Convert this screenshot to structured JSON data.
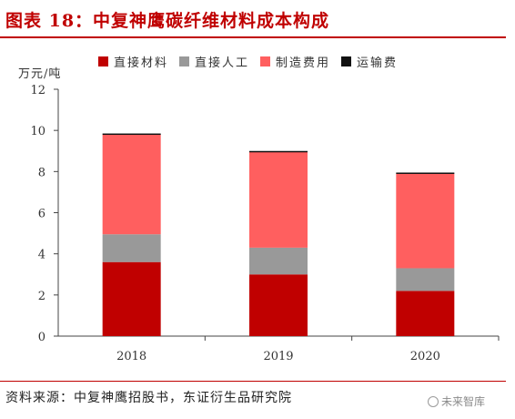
{
  "header": {
    "title": "图表 18：中复神鹰碳纤维材料成本构成"
  },
  "footer": {
    "source": "资料来源：中复神鹰招股书，东证衍生品研究院",
    "watermark": "未来智库"
  },
  "chart_data": {
    "type": "bar",
    "stacked": true,
    "unit": "万元/吨",
    "categories": [
      "2018",
      "2019",
      "2020"
    ],
    "series": [
      {
        "name": "直接材料",
        "color": "#c00000",
        "values": [
          3.6,
          3.0,
          2.2
        ]
      },
      {
        "name": "直接人工",
        "color": "#999999",
        "values": [
          1.35,
          1.3,
          1.1
        ]
      },
      {
        "name": "制造费用",
        "color": "#ff5f5f",
        "values": [
          4.85,
          4.65,
          4.6
        ]
      },
      {
        "name": "运输费",
        "color": "#111111",
        "values": [
          0.05,
          0.05,
          0.05
        ]
      }
    ],
    "ylim": [
      0,
      12
    ],
    "yticks": [
      "0",
      "2",
      "4",
      "6",
      "8",
      "10",
      "12"
    ],
    "legend_position": "top",
    "grid": false
  }
}
